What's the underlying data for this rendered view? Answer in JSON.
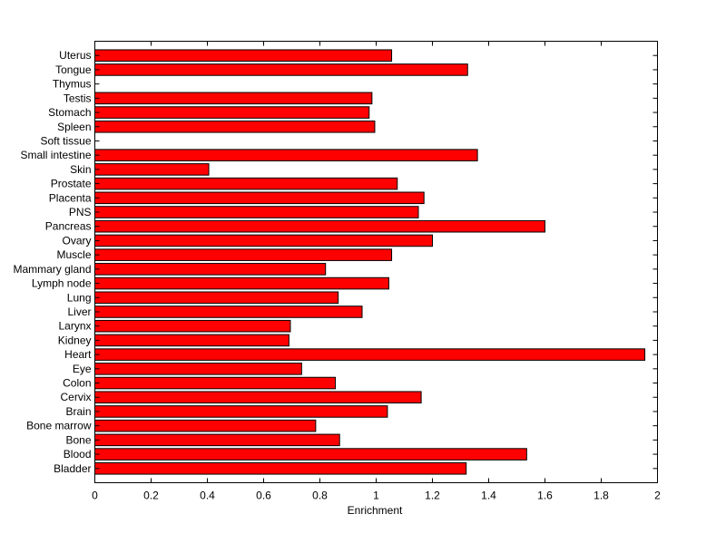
{
  "chart_data": {
    "type": "bar",
    "orientation": "horizontal",
    "title": "",
    "xlabel": "Enrichment",
    "ylabel": "",
    "xlim": [
      0,
      2
    ],
    "x_ticks": [
      "0",
      "0.2",
      "0.4",
      "0.6",
      "0.8",
      "1",
      "1.2",
      "1.4",
      "1.6",
      "1.8",
      "2"
    ],
    "grid": false,
    "bar_color": "#ff0000",
    "categories": [
      "Bladder",
      "Blood",
      "Bone",
      "Bone marrow",
      "Brain",
      "Cervix",
      "Colon",
      "Eye",
      "Heart",
      "Kidney",
      "Larynx",
      "Liver",
      "Lung",
      "Lymph node",
      "Mammary gland",
      "Muscle",
      "Ovary",
      "Pancreas",
      "PNS",
      "Placenta",
      "Prostate",
      "Skin",
      "Small intestine",
      "Soft tissue",
      "Spleen",
      "Stomach",
      "Testis",
      "Thymus",
      "Tongue",
      "Uterus"
    ],
    "values": [
      1.32,
      1.535,
      0.87,
      0.785,
      1.04,
      1.16,
      0.855,
      0.735,
      1.955,
      0.69,
      0.695,
      0.95,
      0.865,
      1.045,
      0.82,
      1.055,
      1.2,
      1.6,
      1.15,
      1.17,
      1.075,
      0.405,
      1.36,
      0,
      0.995,
      0.975,
      0.985,
      0,
      1.325,
      1.055
    ]
  }
}
